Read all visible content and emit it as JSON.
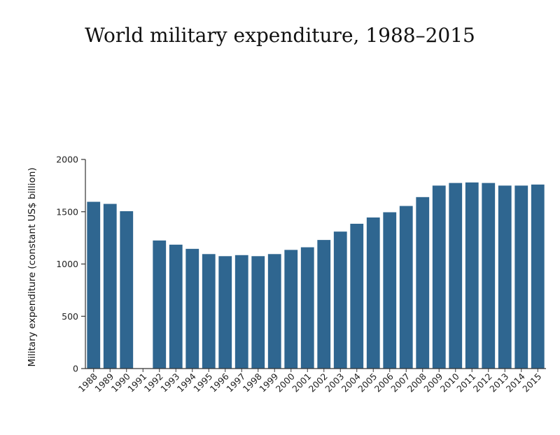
{
  "chart_data": {
    "type": "bar",
    "title": "World military expenditure, 1988–2015",
    "xlabel": "",
    "ylabel": "Military expenditure (constant US$ billion)",
    "ylim": [
      0,
      2000
    ],
    "yticks": [
      0,
      500,
      1000,
      1500,
      2000
    ],
    "categories": [
      "1988",
      "1989",
      "1990",
      "1991",
      "1992",
      "1993",
      "1994",
      "1995",
      "1996",
      "1997",
      "1998",
      "1999",
      "2000",
      "2001",
      "2002",
      "2003",
      "2004",
      "2005",
      "2006",
      "2007",
      "2008",
      "2009",
      "2010",
      "2011",
      "2012",
      "2013",
      "2014",
      "2015"
    ],
    "values": [
      1595,
      1575,
      1505,
      0,
      1225,
      1185,
      1145,
      1095,
      1075,
      1085,
      1075,
      1095,
      1135,
      1160,
      1230,
      1310,
      1385,
      1445,
      1495,
      1555,
      1640,
      1750,
      1775,
      1780,
      1775,
      1750,
      1750,
      1760
    ],
    "bar_color": "#2f6690",
    "grid": false
  }
}
